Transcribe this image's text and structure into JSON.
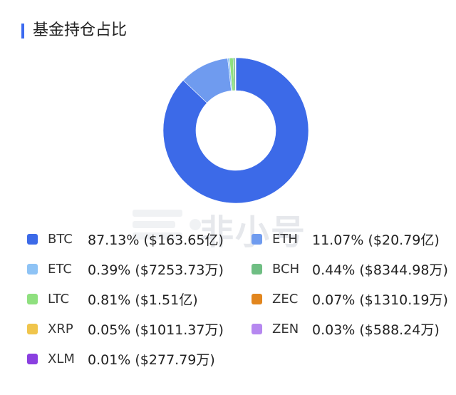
{
  "header": {
    "title": "基金持仓占比"
  },
  "watermark": {
    "text": "非小号"
  },
  "chart_data": {
    "type": "pie",
    "title": "基金持仓占比",
    "donut": true,
    "legend_placement": "bottom",
    "slices": [
      {
        "name": "BTC",
        "value": 87.13,
        "percent": "87.13%",
        "amount": "($163.65亿)",
        "color": "#3c6ae8"
      },
      {
        "name": "ETH",
        "value": 11.07,
        "percent": "11.07%",
        "amount": "($20.79亿)",
        "color": "#6f9bef"
      },
      {
        "name": "ETC",
        "value": 0.39,
        "percent": "0.39%",
        "amount": "($7253.73万)",
        "color": "#8ec3f5"
      },
      {
        "name": "BCH",
        "value": 0.44,
        "percent": "0.44%",
        "amount": "($8344.98万)",
        "color": "#6fbe83"
      },
      {
        "name": "LTC",
        "value": 0.81,
        "percent": "0.81%",
        "amount": "($1.51亿)",
        "color": "#8fe07f"
      },
      {
        "name": "ZEC",
        "value": 0.07,
        "percent": "0.07%",
        "amount": "($1310.19万)",
        "color": "#e2861e"
      },
      {
        "name": "XRP",
        "value": 0.05,
        "percent": "0.05%",
        "amount": "($1011.37万)",
        "color": "#f0c54c"
      },
      {
        "name": "ZEN",
        "value": 0.03,
        "percent": "0.03%",
        "amount": "($588.24万)",
        "color": "#b688f0"
      },
      {
        "name": "XLM",
        "value": 0.01,
        "percent": "0.01%",
        "amount": "($277.79万)",
        "color": "#8a3fe0"
      }
    ]
  }
}
